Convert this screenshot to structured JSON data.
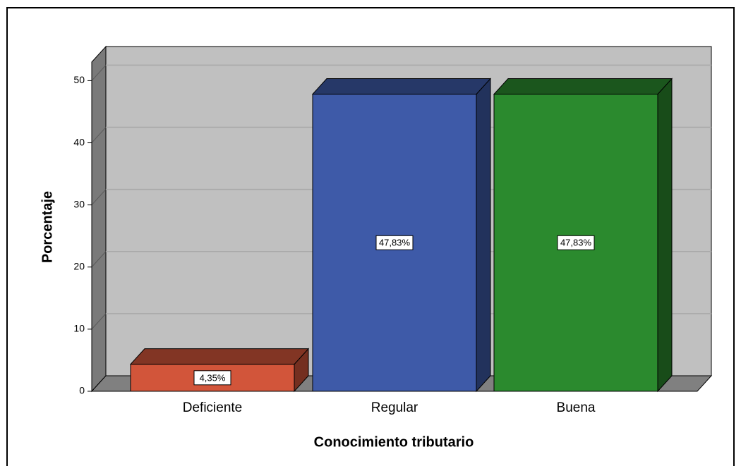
{
  "chart_data": {
    "type": "bar3d",
    "xlabel": "Conocimiento tributario",
    "ylabel": "Porcentaje",
    "categories": [
      "Deficiente",
      "Regular",
      "Buena"
    ],
    "values": [
      4.35,
      47.83,
      47.83
    ],
    "value_labels": [
      "4,35%",
      "47,83%",
      "47,83%"
    ],
    "colors": [
      "#d2553a",
      "#3e5aa8",
      "#2b8a2e"
    ],
    "ylim": [
      0,
      53
    ],
    "yticks": [
      0,
      10,
      20,
      30,
      40,
      50
    ],
    "grid": true
  }
}
